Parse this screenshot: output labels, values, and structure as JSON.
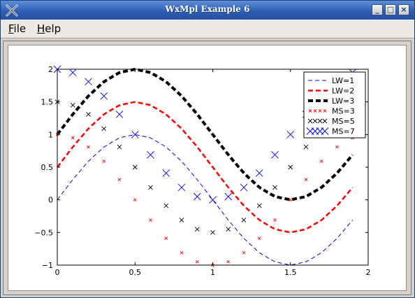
{
  "window": {
    "title": "WxMpl Example 6",
    "controls": {
      "minimize": "_",
      "maximize": "□",
      "close": "×"
    }
  },
  "menu": {
    "file": {
      "label": "File",
      "underline": "F",
      "rest": "ile"
    },
    "help": {
      "label": "Help",
      "underline": "H",
      "rest": "elp"
    }
  },
  "icons": {
    "app": "wx-app-icon",
    "minimize": "minimize-icon",
    "maximize": "maximize-icon",
    "close": "close-icon"
  },
  "chart_data": {
    "type": "line",
    "title": "",
    "xlabel": "",
    "ylabel": "",
    "xlim": [
      0,
      2
    ],
    "ylim": [
      -1,
      2
    ],
    "xticks": [
      "0",
      "0.5",
      "1",
      "1.5",
      "2"
    ],
    "yticks": [
      "2",
      "1.5",
      "1",
      "0.5",
      "0",
      "−0.5",
      "−1"
    ],
    "grid": false,
    "legend_position": "top-right",
    "x": [
      0.0,
      0.1,
      0.2,
      0.3,
      0.4,
      0.5,
      0.6,
      0.7,
      0.8,
      0.9,
      1.0,
      1.1,
      1.2,
      1.3,
      1.4,
      1.5,
      1.6,
      1.7,
      1.8,
      1.9
    ],
    "series": [
      {
        "name": "LW=1",
        "style": "line",
        "color": "#0000ff",
        "values": [
          0.0,
          0.31,
          0.59,
          0.81,
          0.95,
          1.0,
          0.95,
          0.81,
          0.59,
          0.31,
          0.0,
          -0.31,
          -0.59,
          -0.81,
          -0.95,
          -1.0,
          -0.95,
          -0.81,
          -0.59,
          -0.31
        ]
      },
      {
        "name": "LW=2",
        "style": "line",
        "color": "#ff0000",
        "values": [
          0.5,
          0.81,
          1.09,
          1.31,
          1.45,
          1.5,
          1.45,
          1.31,
          1.09,
          0.81,
          0.5,
          0.19,
          -0.09,
          -0.31,
          -0.45,
          -0.5,
          -0.45,
          -0.31,
          -0.09,
          0.19
        ]
      },
      {
        "name": "LW=3",
        "style": "line",
        "color": "#000000",
        "values": [
          1.0,
          1.31,
          1.59,
          1.81,
          1.95,
          2.0,
          1.95,
          1.81,
          1.59,
          1.31,
          1.0,
          0.69,
          0.41,
          0.19,
          0.05,
          0.0,
          0.05,
          0.19,
          0.41,
          0.69
        ]
      },
      {
        "name": "MS=3",
        "style": "marker",
        "color": "#ff0000",
        "values": [
          1.0,
          0.95,
          0.81,
          0.59,
          0.31,
          0.0,
          -0.31,
          -0.59,
          -0.81,
          -0.95,
          -1.0,
          -0.95,
          -0.81,
          -0.59,
          -0.31,
          0.0,
          0.31,
          0.59,
          0.81,
          0.95
        ]
      },
      {
        "name": "MS=5",
        "style": "marker",
        "color": "#000000",
        "values": [
          1.5,
          1.45,
          1.31,
          1.09,
          0.81,
          0.5,
          0.19,
          -0.09,
          -0.31,
          -0.45,
          -0.5,
          -0.45,
          -0.31,
          -0.09,
          0.19,
          0.5,
          0.81,
          1.09,
          1.31,
          1.45
        ]
      },
      {
        "name": "MS=7",
        "style": "marker",
        "color": "#0000ff",
        "values": [
          2.0,
          1.95,
          1.81,
          1.59,
          1.31,
          1.0,
          0.69,
          0.41,
          0.19,
          0.05,
          0.0,
          0.05,
          0.19,
          0.41,
          0.69,
          1.0,
          1.31,
          1.59,
          1.81,
          1.95
        ]
      }
    ]
  }
}
